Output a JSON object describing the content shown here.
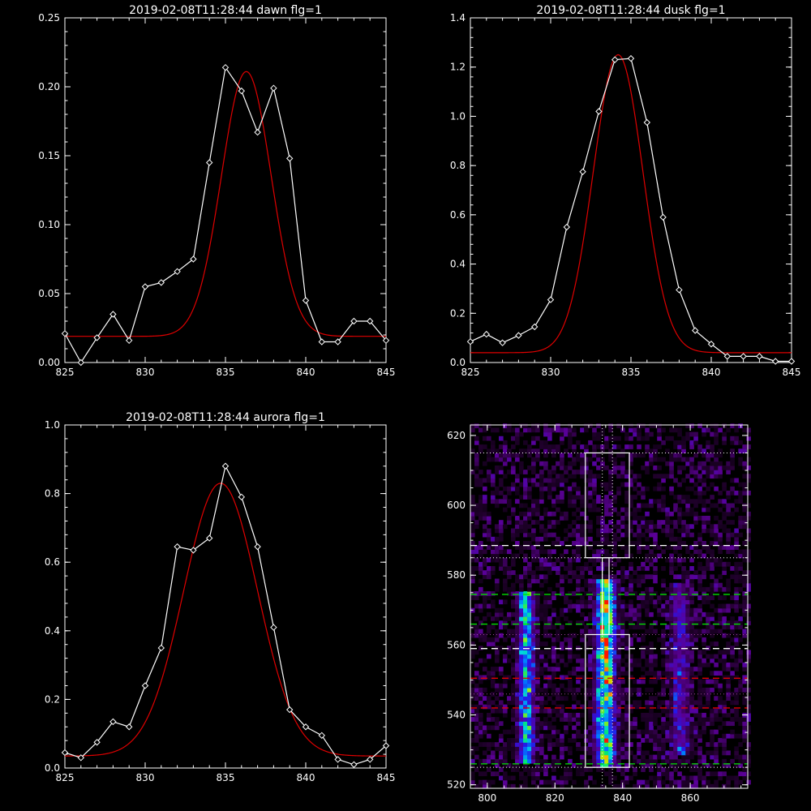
{
  "colors": {
    "background": "#000000",
    "axes": "#ffffff",
    "data_line": "#ffffff",
    "fit_line": "#e00000",
    "dotted_line": "#ffffff",
    "dashed_white": "#ffffff",
    "dashed_green": "#00e000",
    "dashed_red": "#e00000"
  },
  "chart_data": [
    {
      "type": "line",
      "title": "2019-02-08T11:28:44 dawn flg=1",
      "xlim": [
        825,
        845
      ],
      "ylim": [
        0,
        0.25
      ],
      "xticks": [
        825,
        830,
        835,
        840,
        845
      ],
      "yticks": [
        "0.00",
        "0.05",
        "0.10",
        "0.15",
        "0.20",
        "0.25"
      ],
      "series": [
        {
          "style": "data",
          "x": [
            825,
            826,
            827,
            828,
            829,
            830,
            831,
            832,
            833,
            834,
            835,
            836,
            837,
            838,
            839,
            840,
            841,
            842,
            843,
            844,
            845
          ],
          "y": [
            0.021,
            0.0,
            0.018,
            0.035,
            0.016,
            0.055,
            0.058,
            0.066,
            0.075,
            0.145,
            0.214,
            0.197,
            0.167,
            0.199,
            0.148,
            0.045,
            0.015,
            0.015,
            0.03,
            0.03,
            0.016
          ]
        },
        {
          "style": "fit",
          "model": "gaussian",
          "baseline": 0.019,
          "amplitude": 0.192,
          "center": 836.3,
          "sigma": 1.55
        }
      ]
    },
    {
      "type": "line",
      "title": "2019-02-08T11:28:44 dusk flg=1",
      "xlim": [
        825,
        845
      ],
      "ylim": [
        0,
        1.4
      ],
      "xticks": [
        825,
        830,
        835,
        840,
        845
      ],
      "yticks": [
        "0.0",
        "0.2",
        "0.4",
        "0.6",
        "0.8",
        "1.0",
        "1.2",
        "1.4"
      ],
      "series": [
        {
          "style": "data",
          "x": [
            825,
            826,
            827,
            828,
            829,
            830,
            831,
            832,
            833,
            834,
            835,
            836,
            837,
            838,
            839,
            840,
            841,
            842,
            843,
            844,
            845
          ],
          "y": [
            0.085,
            0.115,
            0.08,
            0.11,
            0.145,
            0.255,
            0.55,
            0.775,
            1.02,
            1.23,
            1.235,
            0.975,
            0.59,
            0.295,
            0.13,
            0.075,
            0.025,
            0.025,
            0.025,
            0.005,
            0.005
          ]
        },
        {
          "style": "fit",
          "model": "gaussian",
          "baseline": 0.04,
          "amplitude": 1.21,
          "center": 834.2,
          "sigma": 1.55
        }
      ]
    },
    {
      "type": "line",
      "title": "2019-02-08T11:28:44 aurora flg=1",
      "xlim": [
        825,
        845
      ],
      "ylim": [
        0,
        1.0
      ],
      "xticks": [
        825,
        830,
        835,
        840,
        845
      ],
      "yticks": [
        "0.0",
        "0.2",
        "0.4",
        "0.6",
        "0.8",
        "1.0"
      ],
      "series": [
        {
          "style": "data",
          "x": [
            825,
            826,
            827,
            828,
            829,
            830,
            831,
            832,
            833,
            834,
            835,
            836,
            837,
            838,
            839,
            840,
            841,
            842,
            843,
            844,
            845
          ],
          "y": [
            0.045,
            0.03,
            0.075,
            0.135,
            0.12,
            0.24,
            0.35,
            0.645,
            0.635,
            0.67,
            0.88,
            0.79,
            0.645,
            0.41,
            0.17,
            0.12,
            0.095,
            0.025,
            0.01,
            0.025,
            0.065
          ]
        },
        {
          "style": "fit",
          "model": "gaussian",
          "baseline": 0.035,
          "amplitude": 0.795,
          "center": 834.7,
          "sigma": 2.3
        }
      ]
    },
    {
      "type": "heatmap",
      "title": "",
      "xlim": [
        795,
        877
      ],
      "ylim": [
        519,
        623
      ],
      "xticks": [
        800,
        820,
        840,
        860
      ],
      "yticks": [
        520,
        540,
        560,
        580,
        600,
        620
      ],
      "emission_bands": [
        {
          "x_center": 811.5,
          "x_width": 5,
          "y_range": [
            526,
            575
          ],
          "strength": 0.75
        },
        {
          "x_center": 835,
          "x_width": 6,
          "y_range": [
            525,
            578
          ],
          "strength": 1.0
        },
        {
          "x_center": 857,
          "x_width": 6,
          "y_range": [
            528,
            577
          ],
          "strength": 0.35
        }
      ],
      "boxes": [
        {
          "x": [
            829,
            842
          ],
          "y": [
            585,
            615
          ]
        },
        {
          "x": [
            829,
            842
          ],
          "y": [
            525,
            563
          ]
        },
        {
          "x": [
            834,
            836
          ],
          "y": [
            563,
            585
          ]
        }
      ],
      "dotted_vertical_lines": [
        834,
        837
      ],
      "dotted_horizontal_lines": [
        615,
        585,
        525
      ],
      "dashed_lines": [
        {
          "y": 588.5,
          "color": "white"
        },
        {
          "y": 574.5,
          "color": "green"
        },
        {
          "y": 566,
          "color": "green"
        },
        {
          "y": 559,
          "color": "white"
        },
        {
          "y": 550.5,
          "color": "red"
        },
        {
          "y": 542,
          "color": "red"
        },
        {
          "y": 526,
          "color": "green"
        }
      ],
      "faint_dotted_lines": [
        563,
        546
      ]
    }
  ]
}
